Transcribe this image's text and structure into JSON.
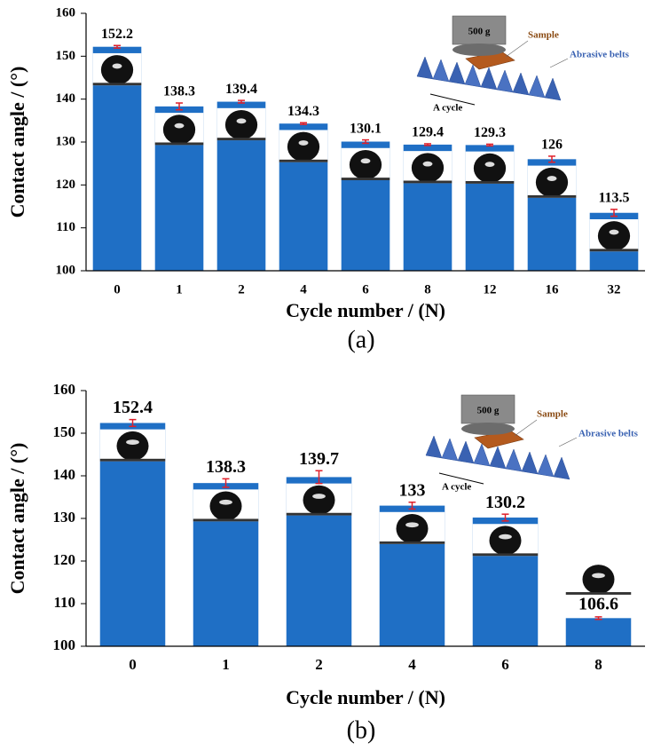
{
  "chart_data": [
    {
      "type": "bar",
      "panel_label": "(a)",
      "xlabel": "Cycle number / (N)",
      "ylabel": "Contact angle / (°)",
      "categories": [
        "0",
        "1",
        "2",
        "4",
        "6",
        "8",
        "12",
        "16",
        "32"
      ],
      "values": [
        152.2,
        138.3,
        139.4,
        134.3,
        130.1,
        129.4,
        129.3,
        126,
        113.5
      ],
      "errors": [
        0.3,
        0.8,
        0.3,
        0.2,
        0.4,
        0.2,
        0.2,
        0.7,
        0.8
      ],
      "color": "#1f6fc5",
      "error_color": "#e0202a",
      "ylim": [
        100,
        160
      ],
      "yticks": [
        100,
        110,
        120,
        130,
        140,
        150,
        160
      ],
      "inset_labels": [
        "500 g",
        "Sample",
        "Abrasive belts",
        "A cycle"
      ]
    },
    {
      "type": "bar",
      "panel_label": "(b)",
      "xlabel": "Cycle number / (N)",
      "ylabel": "Contact angle / (°)",
      "categories": [
        "0",
        "1",
        "2",
        "4",
        "6",
        "8"
      ],
      "values": [
        152.4,
        138.3,
        139.7,
        133,
        130.2,
        106.6
      ],
      "errors": [
        0.8,
        1.0,
        1.5,
        0.8,
        0.8,
        0.3
      ],
      "color": "#1f6fc5",
      "error_color": "#e0202a",
      "ylim": [
        100,
        160
      ],
      "yticks": [
        100,
        110,
        120,
        130,
        140,
        150,
        160
      ],
      "inset_labels": [
        "500 g",
        "Sample",
        "Abrasive belts",
        "A cycle"
      ]
    }
  ]
}
